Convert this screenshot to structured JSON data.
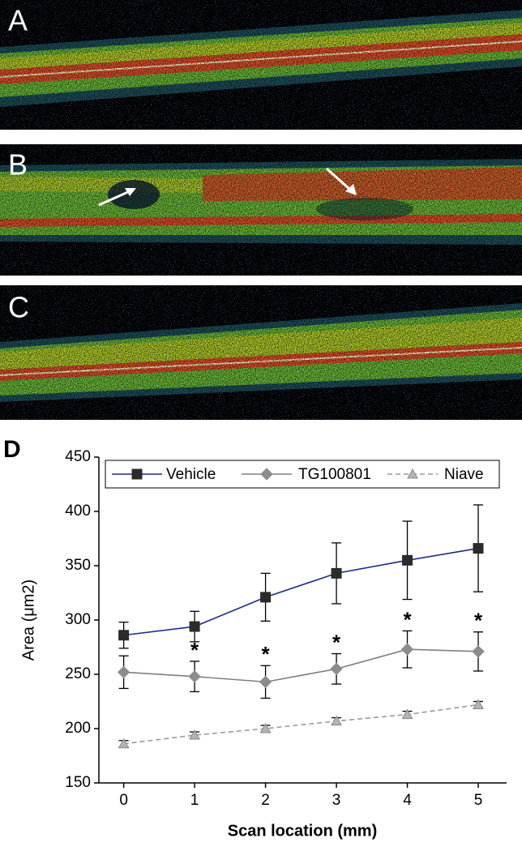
{
  "panels": [
    "A",
    "B",
    "C"
  ],
  "chart_data": {
    "type": "line",
    "panel_label": "D",
    "xlabel": "Scan location (mm)",
    "ylabel": "Area (μm2)",
    "x": [
      0,
      1,
      2,
      3,
      4,
      5
    ],
    "xlim": [
      -0.35,
      5.4
    ],
    "xticks": [
      0,
      1,
      2,
      3,
      4,
      5
    ],
    "ylim": [
      150,
      450
    ],
    "yticks": [
      150,
      200,
      250,
      300,
      350,
      400,
      450
    ],
    "legend": "top",
    "series": [
      {
        "name": "Vehicle",
        "color": "#1e2a8a",
        "marker": "square",
        "marker_color": "#2b2b2b",
        "dashed": false,
        "values": [
          286,
          294,
          321,
          343,
          355,
          366
        ],
        "errors": [
          12,
          14,
          22,
          28,
          36,
          40
        ]
      },
      {
        "name": "TG100801",
        "color": "#808080",
        "marker": "diamond",
        "marker_color": "#8c8c8c",
        "dashed": false,
        "values": [
          252,
          248,
          243,
          255,
          273,
          271
        ],
        "errors": [
          15,
          14,
          15,
          14,
          17,
          18
        ]
      },
      {
        "name": "Niave",
        "color": "#9a9a9a",
        "marker": "triangle",
        "marker_color": "#b4b4b4",
        "dashed": true,
        "values": [
          186,
          194,
          200,
          207,
          213,
          222
        ],
        "errors": [
          3,
          3,
          3,
          3,
          3,
          3
        ]
      }
    ],
    "annotations": [
      {
        "text": "*",
        "x": 1
      },
      {
        "text": "*",
        "x": 2
      },
      {
        "text": "*",
        "x": 3
      },
      {
        "text": "*",
        "x": 4
      },
      {
        "text": "*",
        "x": 5
      }
    ]
  }
}
